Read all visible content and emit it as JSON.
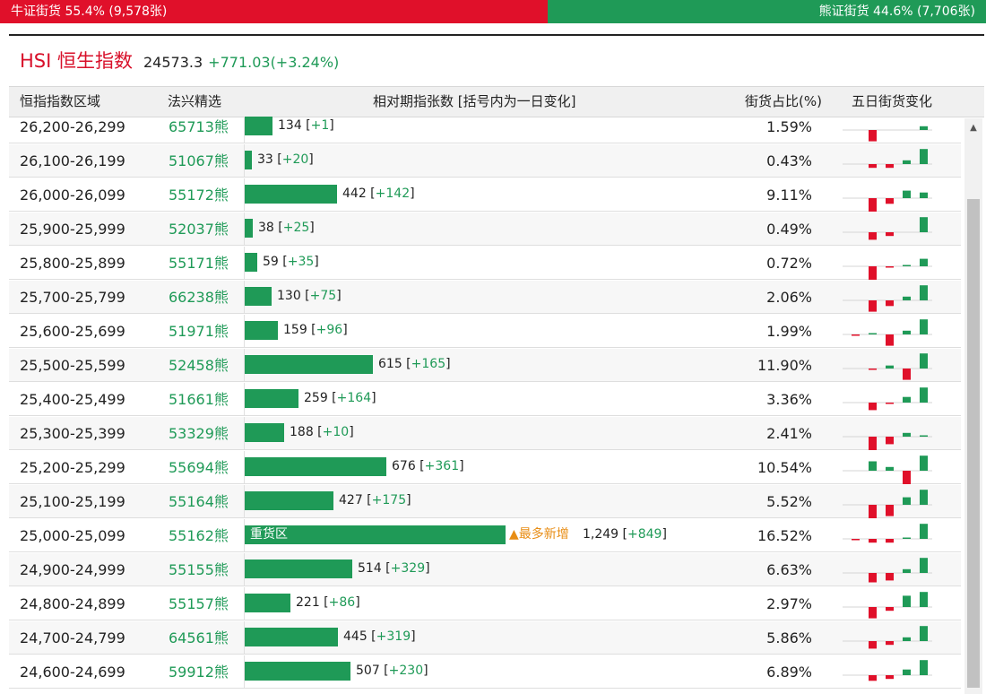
{
  "bull_bear_bar": {
    "bull_label": "牛证街货 55.4% (9,578张)",
    "bull_share_pct": 55.4,
    "bear_label": "熊证街货 44.6% (7,706张)",
    "bear_share_pct": 44.6
  },
  "index": {
    "name": "HSI 恒生指数",
    "value": "24573.3",
    "change": "+771.03(+3.24%)"
  },
  "table": {
    "headers": {
      "range": "恒指指数区域",
      "code": "法兴精选",
      "warrants": "相对期指张数 [括号内为一日变化]",
      "share": "街货占比(%)",
      "five_day": "五日街货变化"
    },
    "rows": [
      {
        "range": "26,200-26,299",
        "code": "65713熊",
        "count": "134",
        "delta": "+1",
        "share": "1.59%",
        "bar_value": 134,
        "spark": [
          0,
          -3,
          0,
          0,
          1
        ]
      },
      {
        "range": "26,100-26,199",
        "code": "51067熊",
        "count": "33",
        "delta": "+20",
        "share": "0.43%",
        "bar_value": 33,
        "spark": [
          0,
          -1,
          -1,
          1,
          4
        ]
      },
      {
        "range": "26,000-26,099",
        "code": "55172熊",
        "count": "442",
        "delta": "+142",
        "share": "9.11%",
        "bar_value": 442,
        "spark": [
          0,
          -4,
          -1.5,
          2,
          1.5
        ]
      },
      {
        "range": "25,900-25,999",
        "code": "52037熊",
        "count": "38",
        "delta": "+25",
        "share": "0.49%",
        "bar_value": 38,
        "spark": [
          0,
          -2,
          -1,
          0,
          4
        ]
      },
      {
        "range": "25,800-25,899",
        "code": "55171熊",
        "count": "59",
        "delta": "+35",
        "share": "0.72%",
        "bar_value": 59,
        "spark": [
          0,
          -4,
          -0.3,
          0.3,
          2
        ]
      },
      {
        "range": "25,700-25,799",
        "code": "66238熊",
        "count": "130",
        "delta": "+75",
        "share": "2.06%",
        "bar_value": 130,
        "spark": [
          0,
          -3,
          -1.5,
          1,
          4
        ]
      },
      {
        "range": "25,600-25,699",
        "code": "51971熊",
        "count": "159",
        "delta": "+96",
        "share": "1.99%",
        "bar_value": 159,
        "spark": [
          -0.3,
          0.3,
          -3,
          1,
          4
        ]
      },
      {
        "range": "25,500-25,599",
        "code": "52458熊",
        "count": "615",
        "delta": "+165",
        "share": "11.90%",
        "bar_value": 615,
        "spark": [
          0,
          -0.3,
          0.8,
          -3,
          4
        ]
      },
      {
        "range": "25,400-25,499",
        "code": "51661熊",
        "count": "259",
        "delta": "+164",
        "share": "3.36%",
        "bar_value": 259,
        "spark": [
          0,
          -2,
          -0.3,
          1.5,
          4
        ]
      },
      {
        "range": "25,300-25,399",
        "code": "53329熊",
        "count": "188",
        "delta": "+10",
        "share": "2.41%",
        "bar_value": 188,
        "spark": [
          0,
          -4,
          -2,
          1,
          0.3
        ]
      },
      {
        "range": "25,200-25,299",
        "code": "55694熊",
        "count": "676",
        "delta": "+361",
        "share": "10.54%",
        "bar_value": 676,
        "spark": [
          0,
          2.5,
          1,
          -4,
          4
        ]
      },
      {
        "range": "25,100-25,199",
        "code": "55164熊",
        "count": "427",
        "delta": "+175",
        "share": "5.52%",
        "bar_value": 427,
        "spark": [
          0,
          -4,
          -3,
          2,
          4
        ]
      },
      {
        "range": "25,000-25,099",
        "code": "55162熊",
        "count": "1,249",
        "delta": "+849",
        "share": "16.52%",
        "bar_value": 1249,
        "heavy_label": "重货区",
        "badge": "▲最多新增",
        "spark": [
          -0.3,
          -1,
          -1,
          0.3,
          4
        ]
      },
      {
        "range": "24,900-24,999",
        "code": "55155熊",
        "count": "514",
        "delta": "+329",
        "share": "6.63%",
        "bar_value": 514,
        "spark": [
          0,
          -2.5,
          -2,
          1,
          4
        ]
      },
      {
        "range": "24,800-24,899",
        "code": "55157熊",
        "count": "221",
        "delta": "+86",
        "share": "2.97%",
        "bar_value": 221,
        "spark": [
          0,
          -3,
          -1,
          3,
          4
        ]
      },
      {
        "range": "24,700-24,799",
        "code": "64561熊",
        "count": "445",
        "delta": "+319",
        "share": "5.86%",
        "bar_value": 445,
        "spark": [
          0,
          -2,
          -1,
          1,
          4
        ]
      },
      {
        "range": "24,600-24,699",
        "code": "59912熊",
        "count": "507",
        "delta": "+230",
        "share": "6.89%",
        "bar_value": 507,
        "spark": [
          0,
          -1.5,
          -1,
          1.5,
          4
        ]
      }
    ]
  },
  "colors": {
    "bull": "#e0102a",
    "bear": "#1f9a57",
    "badge": "#e88d14"
  },
  "icons": {
    "scroll_up": "triangle-up-icon"
  },
  "scroll_up_glyph": "▲"
}
